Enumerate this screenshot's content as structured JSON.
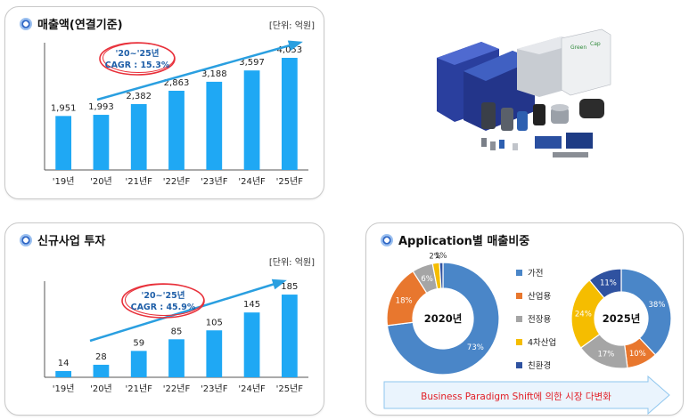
{
  "revenue_panel": {
    "title": "매출액(연결기준)",
    "unit": "[단위: 억원]",
    "cagr_line1": "'20~'25년",
    "cagr_line2": "CAGR : 15.3%"
  },
  "investment_panel": {
    "title": "신규사업 투자",
    "unit": "[단위: 억원]",
    "cagr_line1": "'20~'25년",
    "cagr_line2": "CAGR : 45.9%"
  },
  "application_panel": {
    "title": "Application별 매출비중",
    "donut_2020_label": "2020년",
    "donut_2025_label": "2025년",
    "banner_text": "Business Paradigm Shift에 의한 시장 다변화"
  },
  "colors": {
    "bar": "#1fa8f4",
    "arrow": "#2a9fe0",
    "cagr_ellipse": "#e8303a",
    "cagr_text": "#1f5fa8",
    "household": "#4a86c8",
    "industrial": "#e8772e",
    "electrical": "#a5a5a5",
    "fourth_industry": "#f5bd00",
    "eco": "#2f52a0"
  },
  "product_image": {
    "icon": "capacitor-products-photo",
    "labels": [
      "Green",
      "Cap"
    ]
  },
  "chart_data": [
    {
      "type": "bar",
      "title": "매출액(연결기준)",
      "categories": [
        "'19년",
        "'20년",
        "'21년F",
        "'22년F",
        "'23년F",
        "'24년F",
        "'25년F"
      ],
      "values": [
        1951,
        1993,
        2382,
        2863,
        3188,
        3597,
        4053
      ],
      "value_labels": [
        "1,951",
        "1,993",
        "2,382",
        "2,863",
        "3,188",
        "3,597",
        "4,053"
      ],
      "ylim": [
        0,
        4600
      ]
    },
    {
      "type": "bar",
      "title": "신규사업 투자",
      "categories": [
        "'19년",
        "'20년",
        "'21년F",
        "'22년F",
        "'23년F",
        "'24년F",
        "'25년F"
      ],
      "values": [
        14,
        28,
        59,
        85,
        105,
        145,
        185
      ],
      "value_labels": [
        "14",
        "28",
        "59",
        "85",
        "105",
        "145",
        "185"
      ],
      "ylim": [
        0,
        215
      ]
    },
    {
      "type": "pie",
      "title": "2020년",
      "categories": [
        "가전",
        "산업용",
        "전장용",
        "4차산업",
        "친환경"
      ],
      "values": [
        73,
        18,
        6,
        2,
        1
      ],
      "value_labels": [
        "73%",
        "18%",
        "6%",
        "2%",
        "1%"
      ]
    },
    {
      "type": "pie",
      "title": "2025년",
      "categories": [
        "가전",
        "산업용",
        "전장용",
        "4차산업",
        "친환경"
      ],
      "values": [
        38,
        10,
        17,
        24,
        11
      ],
      "value_labels": [
        "38%",
        "10%",
        "17%",
        "24%",
        "11%"
      ]
    }
  ]
}
